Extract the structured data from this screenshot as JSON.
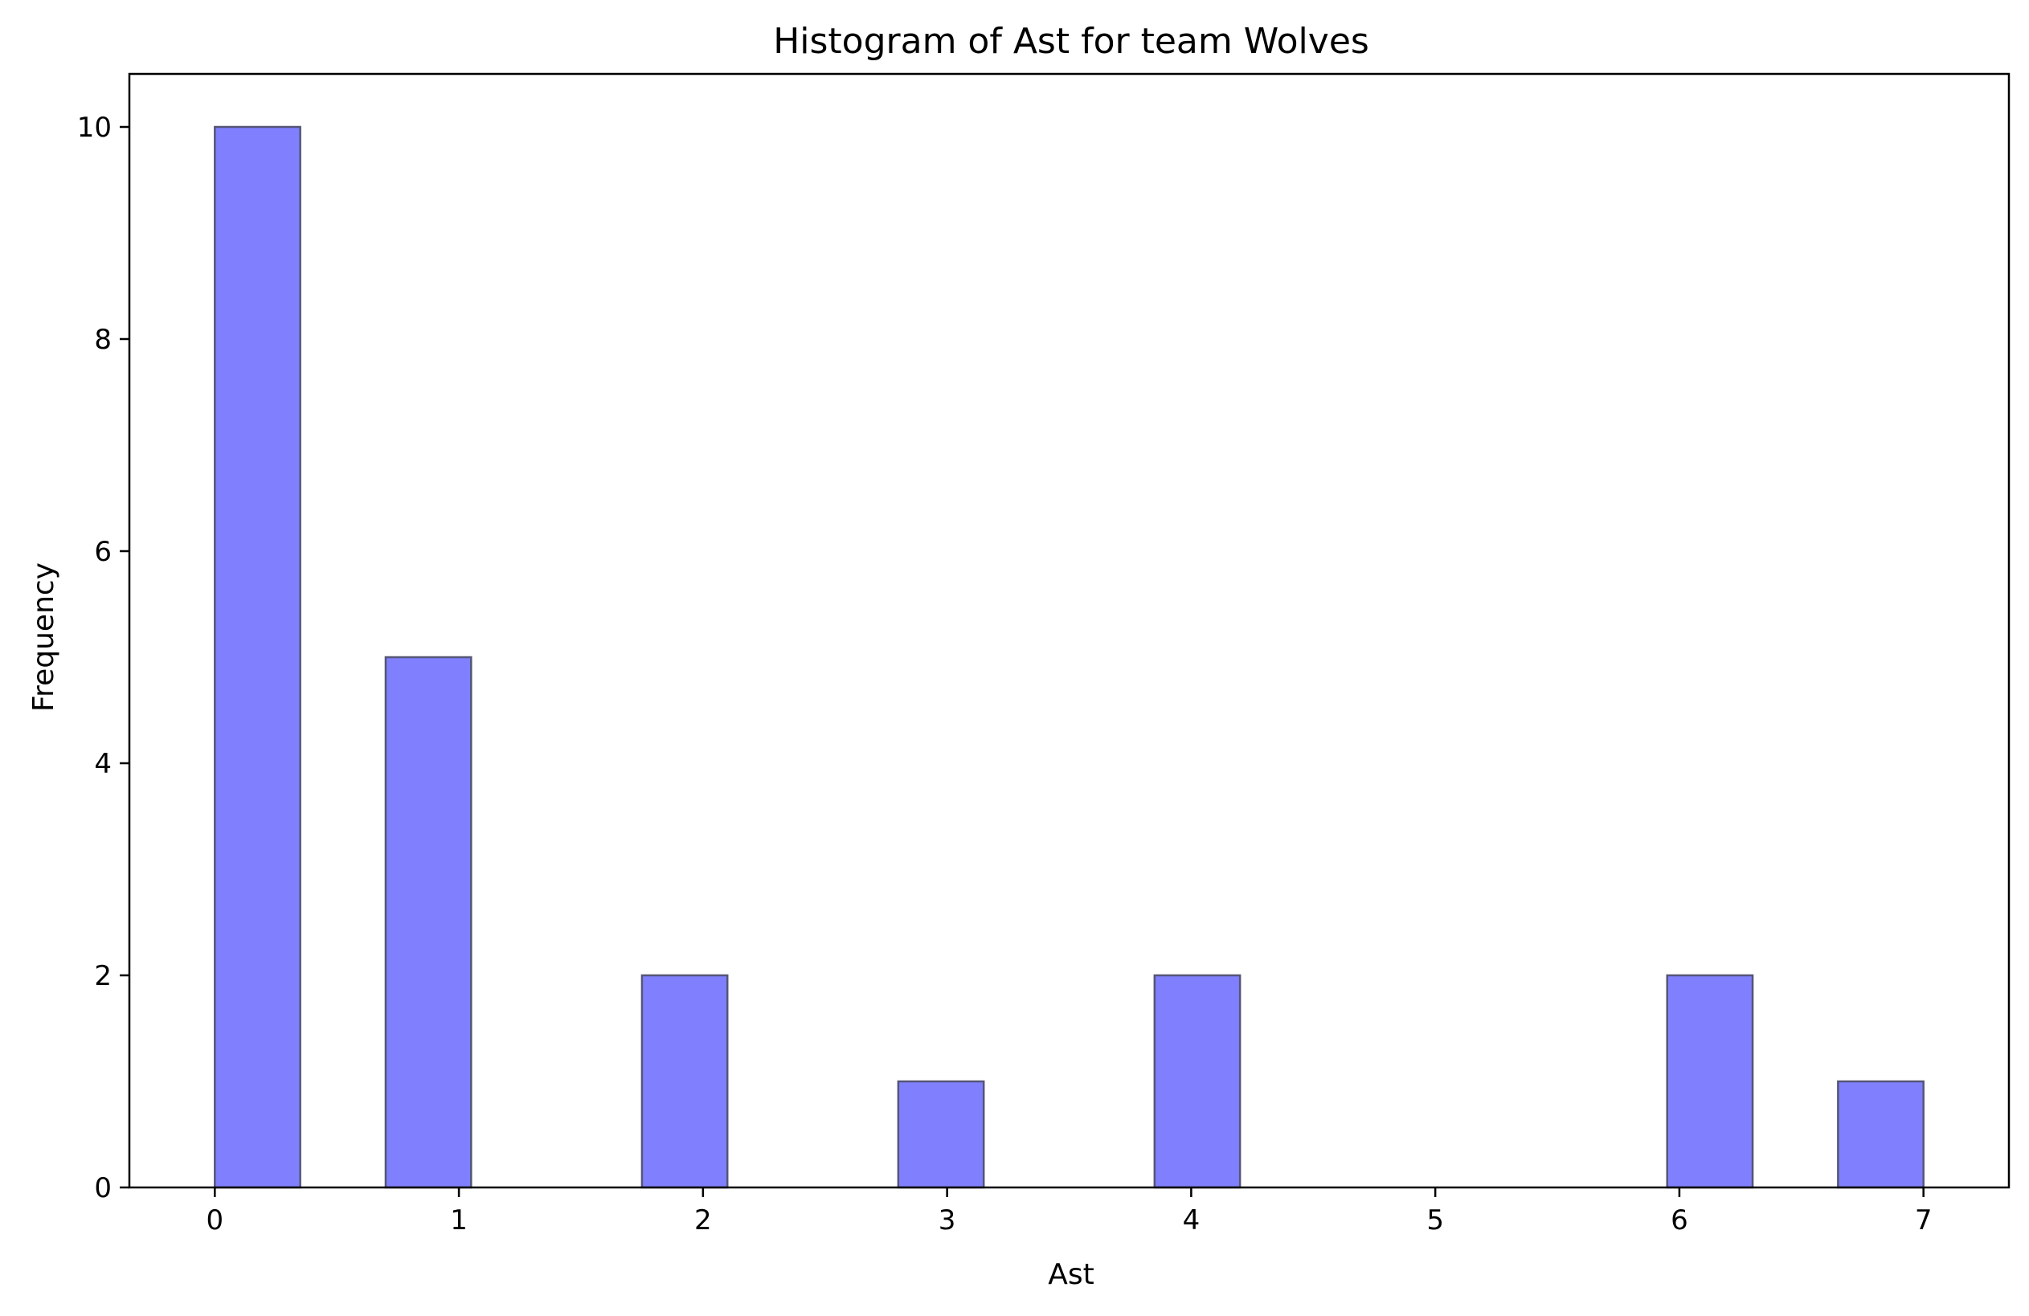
{
  "chart_data": {
    "type": "bar",
    "title": "Histogram of Ast for team Wolves",
    "xlabel": "Ast",
    "ylabel": "Frequency",
    "bins": [
      {
        "x0": 0.0,
        "x1": 0.35,
        "count": 10
      },
      {
        "x0": 0.35,
        "x1": 0.7,
        "count": 0
      },
      {
        "x0": 0.7,
        "x1": 1.05,
        "count": 5
      },
      {
        "x0": 1.05,
        "x1": 1.4,
        "count": 0
      },
      {
        "x0": 1.4,
        "x1": 1.75,
        "count": 0
      },
      {
        "x0": 1.75,
        "x1": 2.1,
        "count": 2
      },
      {
        "x0": 2.1,
        "x1": 2.45,
        "count": 0
      },
      {
        "x0": 2.45,
        "x1": 2.8,
        "count": 0
      },
      {
        "x0": 2.8,
        "x1": 3.15,
        "count": 1
      },
      {
        "x0": 3.15,
        "x1": 3.5,
        "count": 0
      },
      {
        "x0": 3.5,
        "x1": 3.85,
        "count": 0
      },
      {
        "x0": 3.85,
        "x1": 4.2,
        "count": 2
      },
      {
        "x0": 4.2,
        "x1": 4.55,
        "count": 0
      },
      {
        "x0": 4.55,
        "x1": 4.9,
        "count": 0
      },
      {
        "x0": 4.9,
        "x1": 5.25,
        "count": 0
      },
      {
        "x0": 5.25,
        "x1": 5.6,
        "count": 0
      },
      {
        "x0": 5.6,
        "x1": 5.95,
        "count": 0
      },
      {
        "x0": 5.95,
        "x1": 6.3,
        "count": 2
      },
      {
        "x0": 6.3,
        "x1": 6.65,
        "count": 0
      },
      {
        "x0": 6.65,
        "x1": 7.0,
        "count": 1
      }
    ],
    "xlim": [
      -0.35,
      7.35
    ],
    "ylim": [
      0,
      10.5
    ],
    "xticks": [
      0,
      1,
      2,
      3,
      4,
      5,
      6,
      7
    ],
    "yticks": [
      0,
      2,
      4,
      6,
      8,
      10
    ],
    "bar_color": "#8080ff",
    "edge_color": "#555577",
    "grid": false,
    "legend": "none"
  }
}
